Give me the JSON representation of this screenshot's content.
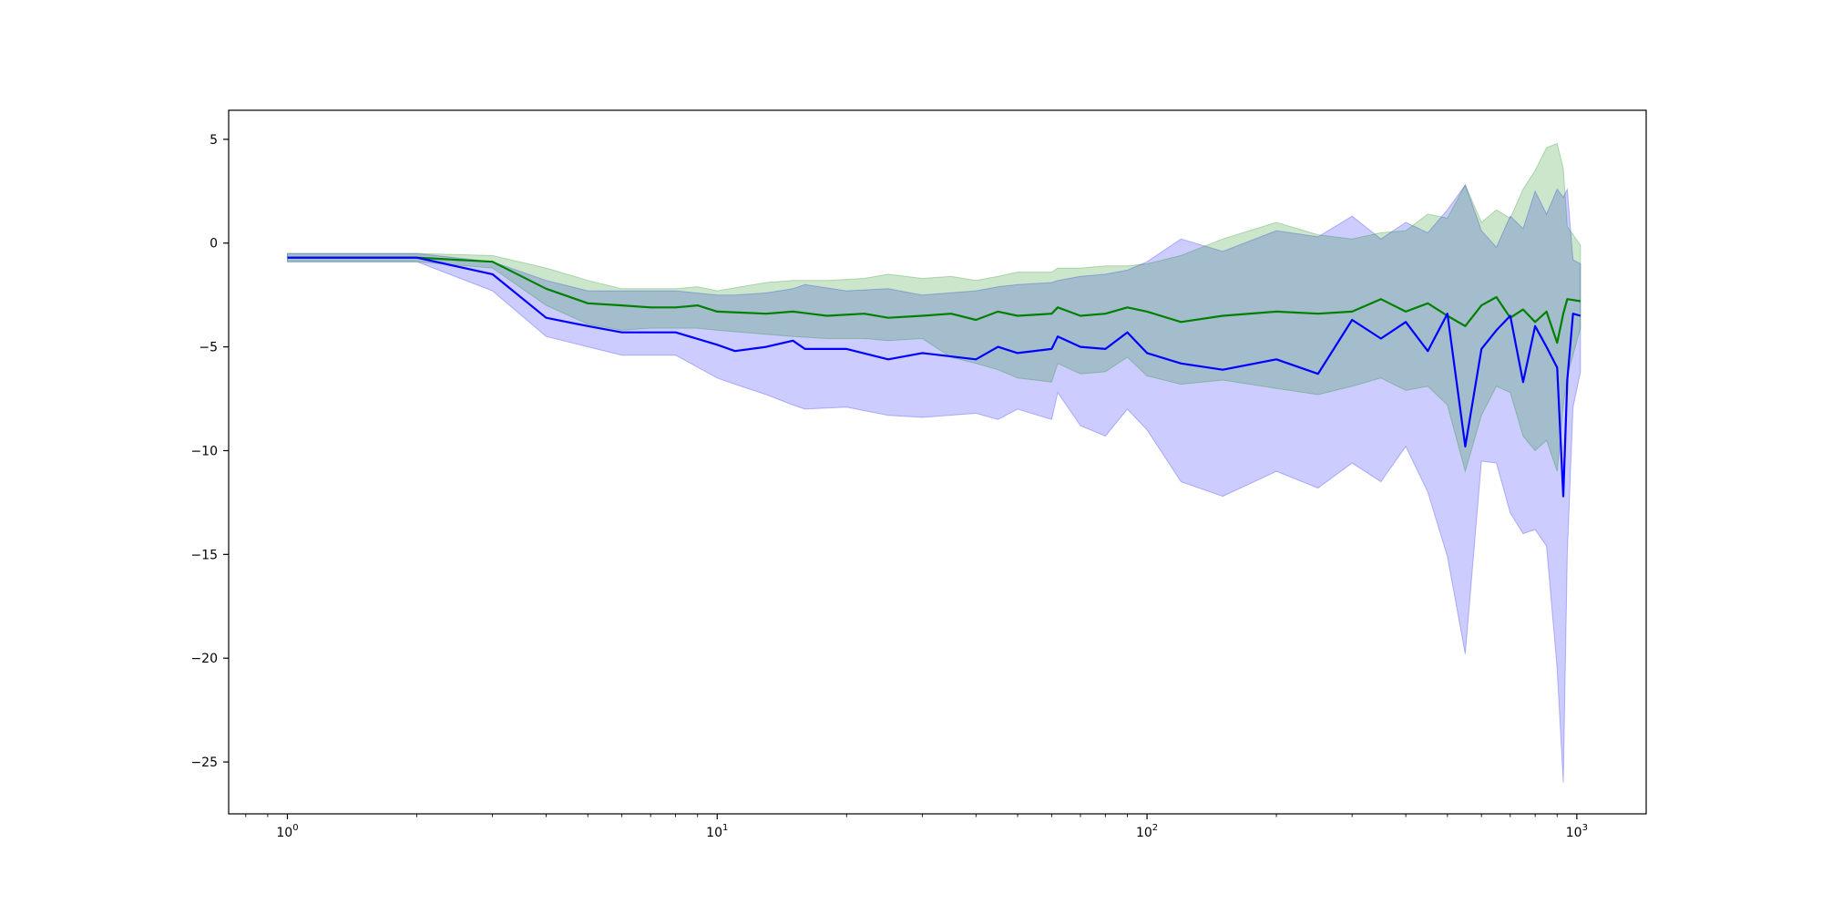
{
  "chart_data": {
    "type": "line",
    "title": "",
    "xlabel": "",
    "ylabel": "",
    "xscale": "log",
    "xlim": [
      0.73,
      1450
    ],
    "ylim": [
      -27.5,
      6.4
    ],
    "grid": false,
    "legend": "none",
    "x_tick_labels": [
      {
        "base": "10",
        "exp": "0",
        "value": 1
      },
      {
        "base": "10",
        "exp": "1",
        "value": 10
      },
      {
        "base": "10",
        "exp": "2",
        "value": 100
      },
      {
        "base": "10",
        "exp": "3",
        "value": 1000
      }
    ],
    "y_tick_labels": [
      {
        "label": "5",
        "value": 5
      },
      {
        "label": "0",
        "value": 0
      },
      {
        "label": "−5",
        "value": -5
      },
      {
        "label": "−10",
        "value": -10
      },
      {
        "label": "−15",
        "value": -15
      },
      {
        "label": "−20",
        "value": -20
      },
      {
        "label": "−25",
        "value": -25
      }
    ],
    "series": [
      {
        "color": "#0000ff",
        "band_color": "#0000ff",
        "band_opacity": 0.2,
        "x": [
          1,
          2,
          3,
          4,
          5,
          6,
          8,
          10,
          11,
          13,
          15,
          16,
          20,
          25,
          30,
          40,
          45,
          50,
          60,
          62,
          70,
          80,
          90,
          100,
          120,
          150,
          200,
          250,
          300,
          350,
          400,
          450,
          500,
          550,
          600,
          650,
          700,
          750,
          800,
          850,
          900,
          930,
          950,
          980,
          1020
        ],
        "y": [
          -0.7,
          -0.7,
          -1.5,
          -3.6,
          -4.0,
          -4.3,
          -4.3,
          -4.9,
          -5.2,
          -5.0,
          -4.7,
          -5.1,
          -5.1,
          -5.6,
          -5.3,
          -5.6,
          -5.0,
          -5.3,
          -5.1,
          -4.5,
          -5.0,
          -5.1,
          -4.3,
          -5.3,
          -5.8,
          -6.1,
          -5.6,
          -6.3,
          -3.7,
          -4.6,
          -3.8,
          -5.2,
          -3.4,
          -9.8,
          -5.1,
          -4.2,
          -3.5,
          -6.7,
          -4.0,
          -5.0,
          -6.0,
          -12.2,
          -6.6,
          -3.4,
          -3.5
        ],
        "upper": [
          -0.5,
          -0.5,
          -0.9,
          -1.8,
          -2.3,
          -2.3,
          -2.3,
          -2.5,
          -2.5,
          -2.4,
          -2.2,
          -2.0,
          -2.3,
          -2.2,
          -2.5,
          -2.3,
          -2.1,
          -2.0,
          -1.9,
          -1.8,
          -1.6,
          -1.5,
          -1.3,
          -0.9,
          0.2,
          -0.4,
          0.6,
          0.3,
          1.3,
          0.2,
          1.0,
          0.5,
          1.6,
          2.8,
          0.6,
          -0.2,
          1.3,
          0.7,
          2.5,
          1.4,
          2.6,
          2.2,
          2.6,
          -0.8,
          -1.0
        ],
        "lower": [
          -0.9,
          -0.9,
          -2.3,
          -4.5,
          -5.0,
          -5.4,
          -5.4,
          -6.5,
          -6.8,
          -7.3,
          -7.8,
          -8.0,
          -7.9,
          -8.3,
          -8.4,
          -8.2,
          -8.5,
          -8.0,
          -8.5,
          -7.2,
          -8.8,
          -9.3,
          -8.0,
          -9.0,
          -11.5,
          -12.2,
          -11.0,
          -11.8,
          -10.6,
          -11.5,
          -9.8,
          -12.0,
          -15.1,
          -19.8,
          -10.5,
          -10.6,
          -13.0,
          -14.0,
          -13.8,
          -14.6,
          -20.5,
          -26.0,
          -15.0,
          -7.9,
          -6.2
        ]
      },
      {
        "color": "#008000",
        "band_color": "#008000",
        "band_opacity": 0.2,
        "x": [
          1,
          2,
          3,
          4,
          5,
          6,
          7,
          8,
          9,
          10,
          13,
          15,
          18,
          22,
          25,
          30,
          35,
          40,
          45,
          50,
          60,
          62,
          70,
          80,
          90,
          100,
          120,
          150,
          200,
          250,
          300,
          350,
          400,
          450,
          500,
          550,
          600,
          650,
          700,
          750,
          800,
          850,
          900,
          930,
          950,
          1020
        ],
        "y": [
          -0.7,
          -0.7,
          -0.9,
          -2.2,
          -2.9,
          -3.0,
          -3.1,
          -3.1,
          -3.0,
          -3.3,
          -3.4,
          -3.3,
          -3.5,
          -3.4,
          -3.6,
          -3.5,
          -3.4,
          -3.7,
          -3.3,
          -3.5,
          -3.4,
          -3.1,
          -3.5,
          -3.4,
          -3.1,
          -3.3,
          -3.8,
          -3.5,
          -3.3,
          -3.4,
          -3.3,
          -2.7,
          -3.3,
          -2.9,
          -3.5,
          -4.0,
          -3.0,
          -2.6,
          -3.6,
          -3.2,
          -3.8,
          -3.3,
          -4.8,
          -3.4,
          -2.7,
          -2.8
        ],
        "upper": [
          -0.5,
          -0.5,
          -0.6,
          -1.2,
          -1.8,
          -2.2,
          -2.2,
          -2.2,
          -2.1,
          -2.3,
          -1.9,
          -1.8,
          -1.8,
          -1.7,
          -1.5,
          -1.7,
          -1.6,
          -1.8,
          -1.6,
          -1.4,
          -1.4,
          -1.2,
          -1.2,
          -1.1,
          -1.1,
          -1.0,
          -0.6,
          0.2,
          1.0,
          0.4,
          0.2,
          0.5,
          0.6,
          1.4,
          1.2,
          2.8,
          1.0,
          1.6,
          1.2,
          2.6,
          3.5,
          4.6,
          4.8,
          3.6,
          0.8,
          -0.1
        ],
        "lower": [
          -0.9,
          -0.9,
          -1.2,
          -3.0,
          -3.9,
          -4.2,
          -4.1,
          -4.1,
          -4.1,
          -4.2,
          -4.4,
          -4.5,
          -4.6,
          -4.6,
          -4.7,
          -4.6,
          -5.5,
          -5.8,
          -6.1,
          -6.5,
          -6.7,
          -5.8,
          -6.3,
          -6.2,
          -5.5,
          -6.4,
          -6.8,
          -6.6,
          -7.0,
          -7.3,
          -6.9,
          -6.5,
          -7.1,
          -6.9,
          -7.8,
          -11.0,
          -8.3,
          -6.9,
          -7.2,
          -9.3,
          -10.0,
          -9.5,
          -11.0,
          -7.8,
          -6.4,
          -4.1
        ]
      }
    ]
  }
}
